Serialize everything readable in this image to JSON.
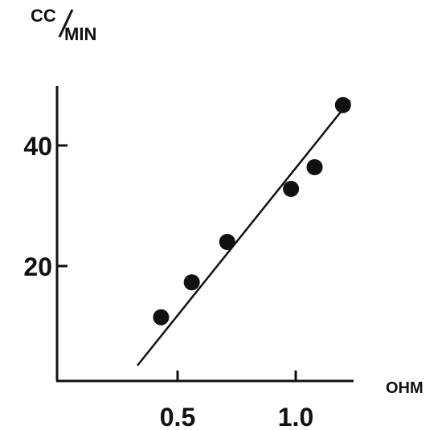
{
  "chart_data": {
    "type": "scatter",
    "ylabel": "CC/MIN",
    "xlabel": "OHM",
    "xlim": [
      0.0,
      1.25
    ],
    "ylim": [
      0,
      50
    ],
    "x_ticks": [
      0.5,
      1.0
    ],
    "x_tick_labels": [
      "0.5",
      "1.0"
    ],
    "y_ticks": [
      20,
      40
    ],
    "y_tick_labels": [
      "20",
      "40"
    ],
    "grid": false,
    "legend": "none",
    "series": [
      {
        "points": [
          {
            "x": 0.43,
            "y": 11.5
          },
          {
            "x": 0.56,
            "y": 17.3
          },
          {
            "x": 0.71,
            "y": 24.0
          },
          {
            "x": 0.98,
            "y": 32.8
          },
          {
            "x": 1.08,
            "y": 36.4
          },
          {
            "x": 1.2,
            "y": 46.7
          }
        ]
      }
    ],
    "fit_line": {
      "x": [
        0.33,
        1.23
      ],
      "y": [
        3.5,
        47.5
      ]
    },
    "colors": {
      "ink": "#111111",
      "background": "#ffffff"
    }
  }
}
